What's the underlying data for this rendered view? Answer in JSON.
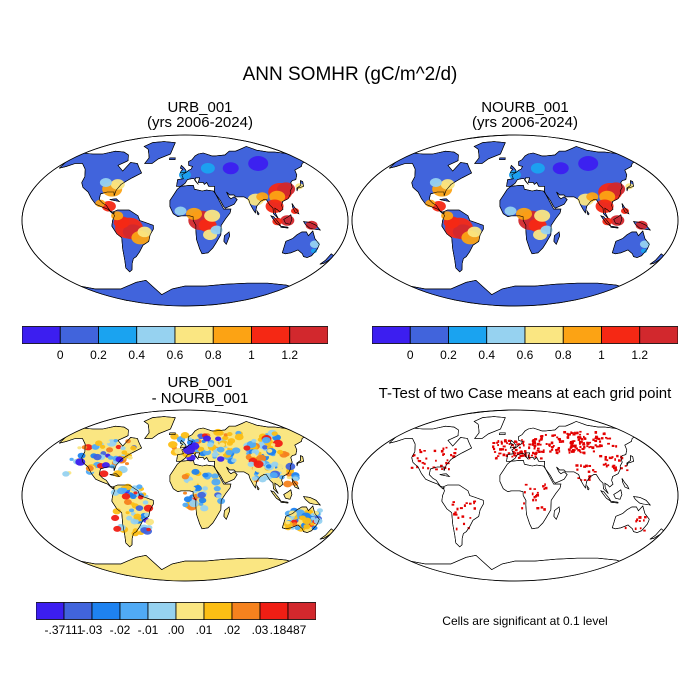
{
  "title": "ANN SOMHR (gC/m^2/d)",
  "panels": {
    "urb": {
      "title1": "URB_001",
      "title2": "(yrs 2006-2024)"
    },
    "nourb": {
      "title1": "NOURB_001",
      "title2": "(yrs 2006-2024)"
    },
    "diff": {
      "title1": "URB_001",
      "title2": "- NOURB_001"
    },
    "ttest": {
      "title": "T-Test of two Case means at each grid point",
      "note": "Cells are significant at 0.1 level"
    }
  },
  "abs_colorbar": {
    "colors": [
      "#3c1ef0",
      "#4164dc",
      "#1aa3f0",
      "#96d2f0",
      "#fae682",
      "#fca314",
      "#f52814",
      "#d2282d"
    ],
    "labels": [
      "0",
      "0.2",
      "0.4",
      "0.6",
      "0.8",
      "1",
      "1.2"
    ]
  },
  "diff_colorbar": {
    "colors": [
      "#3c1ef0",
      "#4164dc",
      "#1e82f0",
      "#50aaf5",
      "#96d2f0",
      "#fae682",
      "#fcbe14",
      "#f5821e",
      "#f01e14",
      "#d2282d"
    ],
    "labels": [
      "-.37111",
      "-.03",
      "-.02",
      "-.01",
      ".00",
      ".01",
      ".02",
      ".03",
      ".18487"
    ]
  },
  "colors": {
    "ocean": "#ffffff",
    "coast": "#000000",
    "significant": "#e30000"
  }
}
